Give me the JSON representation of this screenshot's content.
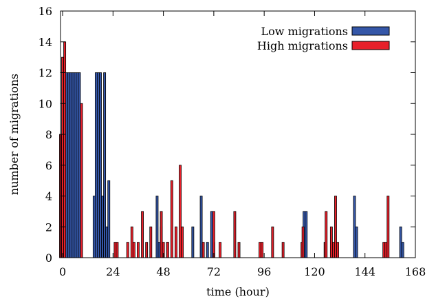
{
  "chart_data": {
    "type": "bar",
    "xlabel": "time (hour)",
    "ylabel": "number of migrations",
    "xlim": [
      -1,
      168
    ],
    "ylim": [
      0,
      16
    ],
    "xticks": [
      0,
      24,
      48,
      72,
      96,
      120,
      144,
      168
    ],
    "yticks": [
      0,
      2,
      4,
      6,
      8,
      10,
      12,
      14,
      16
    ],
    "grid": false,
    "legend_position": "top-right",
    "series": [
      {
        "name": "Low migrations",
        "color": "#3557a8",
        "points": [
          [
            0,
            5
          ],
          [
            1,
            12
          ],
          [
            2,
            12
          ],
          [
            3,
            12
          ],
          [
            4,
            12
          ],
          [
            5,
            12
          ],
          [
            6,
            12
          ],
          [
            7,
            12
          ],
          [
            8,
            12
          ],
          [
            9,
            9
          ],
          [
            15,
            4
          ],
          [
            16,
            12
          ],
          [
            17,
            12
          ],
          [
            18,
            12
          ],
          [
            19,
            4
          ],
          [
            20,
            12
          ],
          [
            21,
            2
          ],
          [
            22,
            5
          ],
          [
            45,
            4
          ],
          [
            46,
            1
          ],
          [
            47,
            2
          ],
          [
            50,
            1
          ],
          [
            62,
            2
          ],
          [
            66,
            4
          ],
          [
            69,
            1
          ],
          [
            71,
            3
          ],
          [
            72,
            1
          ],
          [
            115,
            3
          ],
          [
            116,
            3
          ],
          [
            139,
            4
          ],
          [
            140,
            2
          ],
          [
            161,
            2
          ],
          [
            162,
            1
          ]
        ]
      },
      {
        "name": "High migrations",
        "color": "#e8202a",
        "points": [
          [
            -1,
            8
          ],
          [
            0,
            13
          ],
          [
            1,
            14
          ],
          [
            9,
            10
          ],
          [
            25,
            1
          ],
          [
            26,
            1
          ],
          [
            31,
            1
          ],
          [
            33,
            2
          ],
          [
            34,
            1
          ],
          [
            36,
            1
          ],
          [
            38,
            3
          ],
          [
            40,
            1
          ],
          [
            42,
            2
          ],
          [
            47,
            3
          ],
          [
            48,
            1
          ],
          [
            50,
            1
          ],
          [
            52,
            5
          ],
          [
            54,
            2
          ],
          [
            56,
            6
          ],
          [
            57,
            2
          ],
          [
            67,
            1
          ],
          [
            72,
            3
          ],
          [
            75,
            1
          ],
          [
            82,
            3
          ],
          [
            84,
            1
          ],
          [
            94,
            1
          ],
          [
            95,
            1
          ],
          [
            100,
            2
          ],
          [
            105,
            1
          ],
          [
            114,
            1
          ],
          [
            114.5,
            2
          ],
          [
            125,
            1
          ],
          [
            125.5,
            3
          ],
          [
            128,
            2
          ],
          [
            129,
            1
          ],
          [
            130,
            4
          ],
          [
            131,
            1
          ],
          [
            153,
            1
          ],
          [
            154,
            1
          ],
          [
            155,
            4
          ]
        ]
      }
    ]
  }
}
